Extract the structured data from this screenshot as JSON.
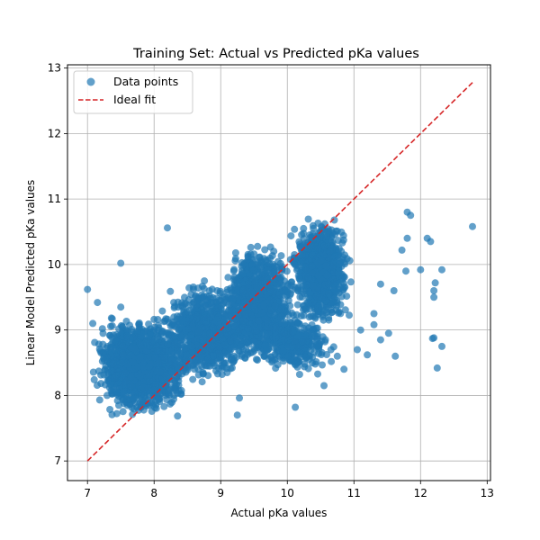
{
  "chart_data": {
    "type": "scatter",
    "title": "Training Set: Actual vs Predicted pKa values",
    "xlabel": "Actual pKa values",
    "ylabel": "Linear Model Predicted pKa values",
    "xlim": [
      6.7,
      13.05
    ],
    "ylim": [
      6.7,
      13.05
    ],
    "xticks": [
      7,
      8,
      9,
      10,
      11,
      12,
      13
    ],
    "yticks": [
      7,
      8,
      9,
      10,
      11,
      12,
      13
    ],
    "grid": true,
    "legend_position": "top-left",
    "series": [
      {
        "name": "Data points",
        "kind": "scatter",
        "color": "#1f77b4",
        "clusters": [
          {
            "x_range": [
              7.0,
              8.6
            ],
            "y_range": [
              7.6,
              9.3
            ],
            "count": 1500
          },
          {
            "x_range": [
              8.0,
              9.6
            ],
            "y_range": [
              8.1,
              9.8
            ],
            "count": 900
          },
          {
            "x_range": [
              9.0,
              10.2
            ],
            "y_range": [
              8.4,
              10.4
            ],
            "count": 1100
          },
          {
            "x_range": [
              10.0,
              11.0
            ],
            "y_range": [
              9.0,
              10.8
            ],
            "count": 900
          },
          {
            "x_range": [
              9.5,
              10.8
            ],
            "y_range": [
              8.3,
              9.3
            ],
            "count": 300
          }
        ],
        "outliers": [
          [
            7.0,
            9.62
          ],
          [
            7.5,
            10.02
          ],
          [
            8.2,
            10.56
          ],
          [
            9.25,
            7.7
          ],
          [
            10.12,
            7.82
          ],
          [
            9.28,
            7.96
          ],
          [
            11.8,
            10.8
          ],
          [
            11.85,
            10.75
          ],
          [
            12.78,
            10.58
          ],
          [
            12.1,
            10.4
          ],
          [
            12.15,
            10.35
          ],
          [
            12.0,
            9.92
          ],
          [
            12.2,
            9.5
          ],
          [
            12.18,
            8.87
          ],
          [
            12.2,
            8.88
          ],
          [
            12.25,
            8.42
          ],
          [
            12.32,
            8.75
          ],
          [
            11.62,
            8.6
          ],
          [
            11.4,
            8.85
          ],
          [
            11.3,
            9.08
          ],
          [
            11.2,
            8.62
          ],
          [
            11.52,
            8.95
          ],
          [
            11.72,
            10.22
          ],
          [
            11.78,
            9.9
          ],
          [
            12.32,
            9.92
          ],
          [
            12.22,
            9.72
          ],
          [
            12.2,
            9.6
          ],
          [
            11.05,
            8.7
          ],
          [
            10.85,
            8.4
          ],
          [
            10.75,
            8.6
          ],
          [
            10.55,
            8.15
          ],
          [
            10.42,
            8.48
          ],
          [
            11.6,
            9.6
          ],
          [
            11.4,
            9.7
          ],
          [
            11.8,
            10.4
          ],
          [
            11.1,
            9.0
          ],
          [
            11.3,
            9.25
          ],
          [
            7.08,
            9.1
          ],
          [
            7.15,
            9.42
          ],
          [
            7.5,
            9.35
          ]
        ]
      },
      {
        "name": "Ideal fit",
        "kind": "line",
        "color": "#d62728",
        "dash": "dashed",
        "x": [
          7.0,
          12.78
        ],
        "y": [
          7.0,
          12.78
        ]
      }
    ]
  }
}
